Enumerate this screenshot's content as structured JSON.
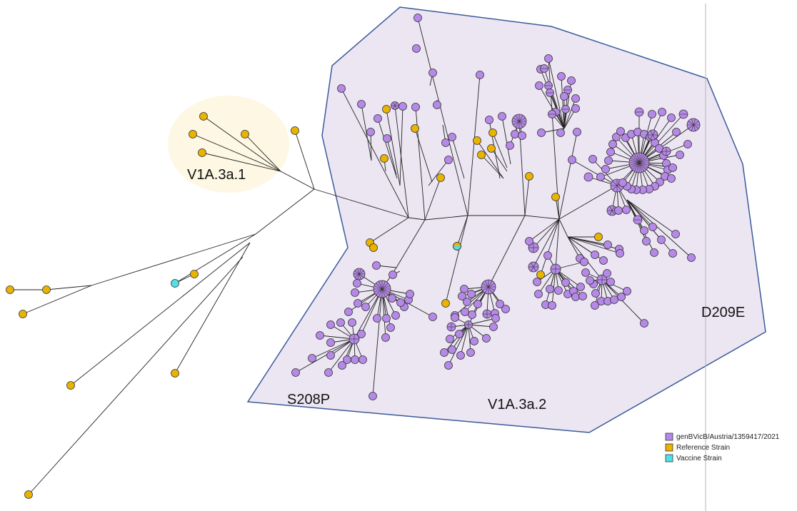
{
  "labels": {
    "cluster_v1a3a1": "V1A.3a.1",
    "cluster_v1a3a2": "V1A.3a.2",
    "mutation_s208p": "S208P",
    "mutation_d209e": "D209E"
  },
  "legend": {
    "items": [
      {
        "label": "genBVicB/Austria/1359417/2021",
        "color": "#b689e8"
      },
      {
        "label": "Reference Strain",
        "color": "#e8b400"
      },
      {
        "label": "Vaccine Strain",
        "color": "#4fe0e8"
      }
    ]
  },
  "colors": {
    "sample": "#b689e8",
    "reference": "#e8b400",
    "vaccine": "#4fe0e8",
    "cluster_fill": "#ece6f3",
    "cluster_border": "#3b5a9a",
    "subclade_highlight": "#fdf7e3"
  }
}
